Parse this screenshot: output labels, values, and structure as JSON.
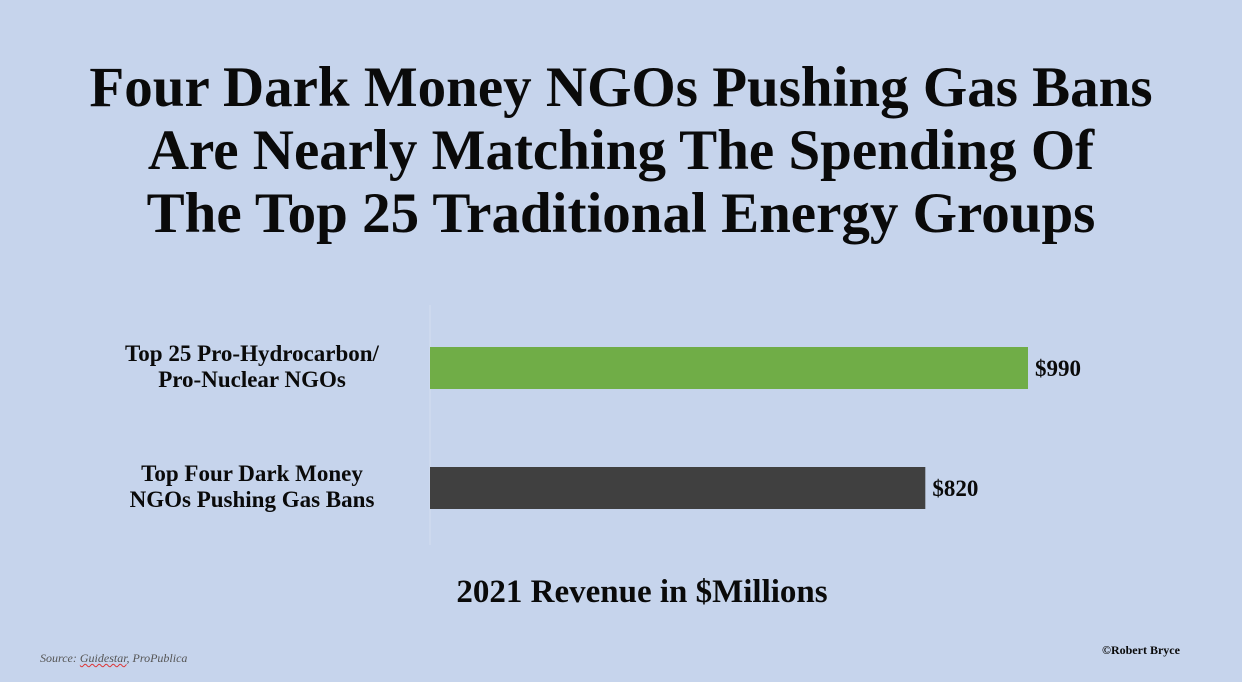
{
  "chart_data": {
    "type": "bar",
    "orientation": "horizontal",
    "title": [
      "Four Dark Money NGOs Pushing Gas Bans",
      "Are Nearly Matching The Spending Of",
      "The Top 25 Traditional Energy Groups"
    ],
    "categories": [
      [
        "Top 25 Pro-Hydrocarbon/",
        "Pro-Nuclear NGOs"
      ],
      [
        "Top Four Dark Money",
        "NGOs Pushing Gas Bans"
      ]
    ],
    "values": [
      990,
      820
    ],
    "data_labels": [
      "$990",
      "$820"
    ],
    "colors": [
      "#70ad47",
      "#404040"
    ],
    "xlabel": "2021 Revenue in $Millions",
    "grid": false
  },
  "footer": {
    "source_prefix": "Source: ",
    "source_link": "Guidestar",
    "source_rest": ", ProPublica",
    "copyright": "©Robert Bryce"
  },
  "colors": {
    "background": "#c6d4ec"
  }
}
